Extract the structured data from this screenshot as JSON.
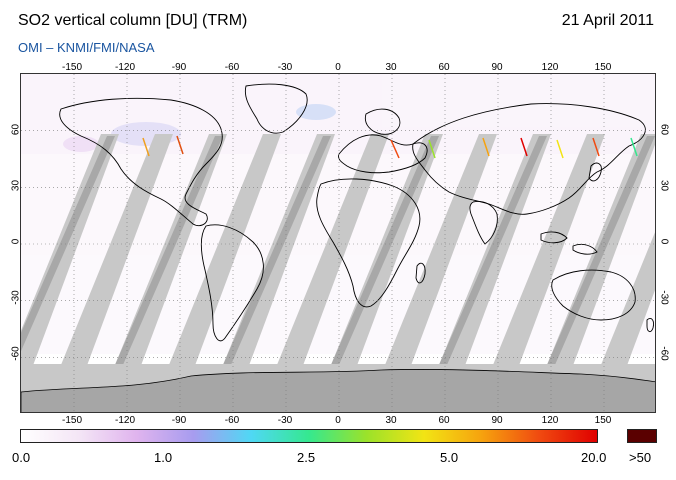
{
  "header": {
    "title": "SO2 vertical column [DU] (TRM)",
    "date": "21 April 2011",
    "credit": "OMI  –  KNMI/FMI/NASA"
  },
  "map": {
    "projection": "equirectangular",
    "lon_ticks": [
      "-150",
      "-120",
      "-90",
      "-60",
      "-30",
      "0",
      "30",
      "60",
      "90",
      "120",
      "150"
    ],
    "lat_ticks": [
      "60",
      "30",
      "0",
      "-30",
      "-60"
    ],
    "background_color": "#ffffff",
    "missing_data_color": "#c8c8c8",
    "overlap_swath_color": "#a8a8a8",
    "coastline_color": "#000000",
    "gridline_style": "dotted"
  },
  "colorbar": {
    "labels": [
      "0.0",
      "1.0",
      "2.5",
      "5.0",
      "20.0"
    ],
    "overflow_label": ">50",
    "colors": [
      "#ffffff",
      "#f4e6f6",
      "#e0b4ee",
      "#a79cef",
      "#4fd8f4",
      "#35e88f",
      "#9be22a",
      "#f2e414",
      "#f6a20e",
      "#f04a10",
      "#e00000"
    ],
    "overflow_color": "#5a0000"
  }
}
